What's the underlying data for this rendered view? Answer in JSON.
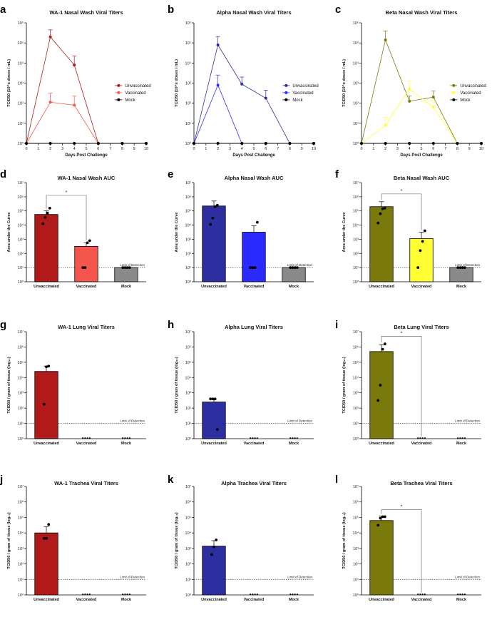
{
  "colors": {
    "wa1_unvax": "#b11a1a",
    "wa1_vax": "#f4564e",
    "alpha_unvax": "#2d2e9f",
    "alpha_vax": "#2b2bff",
    "beta_unvax": "#7a7a0c",
    "beta_vax": "#ffff33",
    "mock": "#8a8a8a",
    "mock_line": "#000000"
  },
  "chart_data": [
    {
      "panel": "a",
      "type": "line",
      "title": "WA-1 Nasal Wash Viral Titers",
      "xlabel": "Days Post Challenge",
      "ylabel": "TCID50 (10^x doses / mL)",
      "x_ticks": [
        "0",
        "1",
        "2",
        "3",
        "4",
        "5",
        "6",
        "7",
        "8",
        "9",
        "10"
      ],
      "y_ticks": [
        "10⁰",
        "10¹",
        "10²",
        "10³",
        "10⁴",
        "10⁵",
        "10⁶"
      ],
      "ylim_log10": [
        0,
        6
      ],
      "x": [
        0,
        2,
        4,
        6,
        8,
        10
      ],
      "series": [
        {
          "name": "Unvaccinated",
          "color_key": "wa1_unvax",
          "values_log10": [
            0,
            5.3,
            3.9,
            0,
            0,
            0
          ],
          "err_log10": [
            0,
            0.35,
            0.45,
            0,
            0,
            0
          ]
        },
        {
          "name": "Vaccinated",
          "color_key": "wa1_vax",
          "values_log10": [
            0,
            2.05,
            1.9,
            0,
            0,
            0
          ],
          "err_log10": [
            0,
            0.45,
            0.45,
            0,
            0,
            0
          ]
        },
        {
          "name": "Mock",
          "color_key": "mock_line",
          "values_log10": [
            0,
            0,
            0,
            0,
            0,
            0
          ],
          "err_log10": [
            0,
            0,
            0,
            0,
            0,
            0
          ]
        }
      ]
    },
    {
      "panel": "b",
      "type": "line",
      "title": "Alpha Nasal Wash Viral Titers",
      "xlabel": "Days Post Challenge",
      "ylabel": "TCID50 (10^x doses / mL)",
      "x_ticks": [
        "0",
        "1",
        "2",
        "3",
        "4",
        "5",
        "6",
        "7",
        "8",
        "9",
        "10"
      ],
      "y_ticks": [
        "10⁰",
        "10¹",
        "10²",
        "10³",
        "10⁴",
        "10⁵",
        "10⁶"
      ],
      "ylim_log10": [
        0,
        6
      ],
      "x": [
        0,
        2,
        4,
        6,
        8,
        10
      ],
      "series": [
        {
          "name": "Unvaccinated",
          "color_key": "alpha_unvax",
          "values_log10": [
            0,
            4.9,
            2.95,
            2.25,
            0,
            0
          ],
          "err_log10": [
            0,
            0.4,
            0.35,
            0.4,
            0,
            0
          ]
        },
        {
          "name": "Vaccinated",
          "color_key": "alpha_vax",
          "values_log10": [
            0,
            2.9,
            0,
            0,
            0,
            0
          ],
          "err_log10": [
            0,
            0.5,
            0,
            0,
            0,
            0
          ]
        },
        {
          "name": "Mock",
          "color_key": "mock_line",
          "values_log10": [
            0,
            0,
            0,
            0,
            0,
            0
          ],
          "err_log10": [
            0,
            0,
            0,
            0,
            0,
            0
          ]
        }
      ]
    },
    {
      "panel": "c",
      "type": "line",
      "title": "Beta Nasal Wash Viral Titers",
      "xlabel": "Days Post Challenge",
      "ylabel": "TCID50 (10^x doses / mL)",
      "x_ticks": [
        "0",
        "1",
        "2",
        "3",
        "4",
        "5",
        "6",
        "7",
        "8",
        "9",
        "10"
      ],
      "y_ticks": [
        "10⁰",
        "10¹",
        "10²",
        "10³",
        "10⁴",
        "10⁵",
        "10⁶"
      ],
      "ylim_log10": [
        0,
        6
      ],
      "x": [
        0,
        2,
        4,
        6,
        8,
        10
      ],
      "series": [
        {
          "name": "Unvaccinated",
          "color_key": "beta_unvax",
          "values_log10": [
            0,
            5.15,
            2.1,
            2.3,
            0,
            0
          ],
          "err_log10": [
            0,
            0.45,
            0.25,
            0.3,
            0,
            0
          ]
        },
        {
          "name": "Vaccinated",
          "color_key": "beta_vax",
          "values_log10": [
            0,
            0.9,
            2.7,
            1.8,
            0,
            0
          ],
          "err_log10": [
            0,
            0.4,
            0.4,
            0.3,
            0,
            0
          ]
        },
        {
          "name": "Mock",
          "color_key": "mock_line",
          "values_log10": [
            0,
            0,
            0,
            0,
            0,
            0
          ],
          "err_log10": [
            0,
            0,
            0,
            0,
            0,
            0
          ]
        }
      ]
    },
    {
      "panel": "d",
      "type": "bar",
      "title": "WA-1 Nasal Wash AUC",
      "ylabel": "Area under the Curve",
      "categories": [
        "Unvaccinated",
        "Vaccinated",
        "Mock"
      ],
      "color_keys": [
        "wa1_unvax",
        "wa1_vax",
        "mock"
      ],
      "values_log10": [
        4.75,
        2.5,
        1.0
      ],
      "err_log10": [
        0.25,
        0.25,
        0
      ],
      "points_log10": [
        [
          4.1,
          4.55,
          4.85,
          5.2
        ],
        [
          1.0,
          1.0,
          2.75,
          2.9
        ],
        [
          1.0,
          1.0,
          1.0,
          1.0
        ]
      ],
      "y_ticks": [
        "10⁰",
        "10¹",
        "10²",
        "10³",
        "10⁴",
        "10⁵",
        "10⁶",
        "10⁷"
      ],
      "ylim_log10": [
        0,
        7
      ],
      "lod_log10": 1.0,
      "lod_label": "Limit of Detection",
      "significance": {
        "from": 0,
        "to": 1,
        "label": "*",
        "level_log10": 6.1
      }
    },
    {
      "panel": "e",
      "type": "bar",
      "title": "Alpha Nasal Wash AUC",
      "ylabel": "Area under the Curve",
      "categories": [
        "Unvaccinated",
        "Vaccinated",
        "Mock"
      ],
      "color_keys": [
        "alpha_unvax",
        "alpha_vax",
        "mock"
      ],
      "values_log10": [
        5.35,
        3.5,
        1.0
      ],
      "err_log10": [
        0.35,
        0.45,
        0
      ],
      "points_log10": [
        [
          4.05,
          4.5,
          5.3,
          5.4
        ],
        [
          1.0,
          1.0,
          1.0,
          4.2
        ],
        [
          1.0,
          1.0,
          1.0,
          1.0
        ]
      ],
      "y_ticks": [
        "10⁰",
        "10¹",
        "10²",
        "10³",
        "10⁴",
        "10⁵",
        "10⁶",
        "10⁷"
      ],
      "ylim_log10": [
        0,
        7
      ],
      "lod_log10": 1.0,
      "lod_label": "Limit of Detection",
      "significance": null
    },
    {
      "panel": "f",
      "type": "bar",
      "title": "Beta Nasal Wash AUC",
      "ylabel": "Area under the Curve",
      "categories": [
        "Unvaccinated",
        "Vaccinated",
        "Mock"
      ],
      "color_keys": [
        "beta_unvax",
        "beta_vax",
        "mock"
      ],
      "values_log10": [
        5.3,
        3.05,
        1.0
      ],
      "err_log10": [
        0.35,
        0.45,
        0
      ],
      "points_log10": [
        [
          4.15,
          4.8,
          5.15,
          5.2
        ],
        [
          1.0,
          2.2,
          2.85,
          3.6
        ],
        [
          1.0,
          1.0,
          1.0,
          1.0
        ]
      ],
      "y_ticks": [
        "10⁰",
        "10¹",
        "10²",
        "10³",
        "10⁴",
        "10⁵",
        "10⁶",
        "10⁷"
      ],
      "ylim_log10": [
        0,
        7
      ],
      "lod_log10": 1.0,
      "lod_label": "Limit of Detection",
      "significance": {
        "from": 0,
        "to": 1,
        "label": "*",
        "level_log10": 6.2
      }
    },
    {
      "panel": "g",
      "type": "bar",
      "title": "WA-1 Lung Viral Titers",
      "ylabel": "TCID50 / gram of tissue (log₁₀)",
      "categories": [
        "Unvaccinated",
        "Vaccinated",
        "Mock"
      ],
      "color_keys": [
        "wa1_unvax",
        "wa1_vax",
        "mock"
      ],
      "values_log10": [
        4.4,
        0,
        0
      ],
      "err_log10": [
        0.35,
        0,
        0
      ],
      "points_log10": [
        [
          2.25,
          4.7,
          4.75
        ],
        [
          0,
          0,
          0,
          0
        ],
        [
          0,
          0,
          0,
          0
        ]
      ],
      "y_ticks": [
        "10⁰",
        "10¹",
        "10²",
        "10³",
        "10⁴",
        "10⁵",
        "10⁶",
        "10⁷"
      ],
      "ylim_log10": [
        0,
        7
      ],
      "lod_log10": 1.0,
      "lod_label": "Limit of Detection",
      "significance": null
    },
    {
      "panel": "h",
      "type": "bar",
      "title": "Alpha Lung Viral Titers",
      "ylabel": "TCID50 / gram of tissue (log₁₀)",
      "categories": [
        "Unvaccinated",
        "Vaccinated",
        "Mock"
      ],
      "color_keys": [
        "alpha_unvax",
        "alpha_vax",
        "mock"
      ],
      "values_log10": [
        2.4,
        0,
        0
      ],
      "err_log10": [
        0.2,
        0,
        0
      ],
      "points_log10": [
        [
          2.6,
          2.6,
          2.6,
          0.6
        ],
        [
          0,
          0,
          0,
          0
        ],
        [
          0,
          0,
          0,
          0
        ]
      ],
      "y_ticks": [
        "10⁰",
        "10¹",
        "10²",
        "10³",
        "10⁴",
        "10⁵",
        "10⁶",
        "10⁷"
      ],
      "ylim_log10": [
        0,
        7
      ],
      "lod_log10": 1.0,
      "lod_label": "Limit of Detection",
      "significance": null
    },
    {
      "panel": "i",
      "type": "bar",
      "title": "Beta Lung Viral Titers",
      "ylabel": "TCID50 / gram of tissue (log₁₀)",
      "categories": [
        "Unvaccinated",
        "Vaccinated",
        "Mock"
      ],
      "color_keys": [
        "beta_unvax",
        "beta_vax",
        "mock"
      ],
      "values_log10": [
        5.7,
        0,
        0
      ],
      "err_log10": [
        0.45,
        0,
        0
      ],
      "points_log10": [
        [
          2.5,
          3.5,
          5.85,
          6.2
        ],
        [
          0,
          0,
          0,
          0
        ],
        [
          0,
          0,
          0,
          0
        ]
      ],
      "y_ticks": [
        "10⁰",
        "10¹",
        "10²",
        "10³",
        "10⁴",
        "10⁵",
        "10⁶",
        "10⁷"
      ],
      "ylim_log10": [
        0,
        7
      ],
      "lod_log10": 1.0,
      "lod_label": "Limit of Detection",
      "significance": {
        "from": 0,
        "to": 1,
        "label": "*",
        "level_log10": 6.7
      }
    },
    {
      "panel": "j",
      "type": "bar",
      "title": "WA-1 Trachea Viral Titers",
      "ylabel": "TCID50 / gram of tissue (log₁₀)",
      "categories": [
        "Unvaccinated",
        "Vaccinated",
        "Mock"
      ],
      "color_keys": [
        "wa1_unvax",
        "wa1_vax",
        "mock"
      ],
      "values_log10": [
        4.0,
        0,
        0
      ],
      "err_log10": [
        0.4,
        0,
        0
      ],
      "points_log10": [
        [
          3.65,
          3.65,
          4.55
        ],
        [
          0,
          0,
          0,
          0
        ],
        [
          0,
          0,
          0,
          0
        ]
      ],
      "y_ticks": [
        "10⁰",
        "10¹",
        "10²",
        "10³",
        "10⁴",
        "10⁵",
        "10⁶",
        "10⁷"
      ],
      "ylim_log10": [
        0,
        7
      ],
      "lod_log10": 1.0,
      "lod_label": "Limit of Detection",
      "significance": null
    },
    {
      "panel": "k",
      "type": "bar",
      "title": "Alpha Trachea Viral Titers",
      "ylabel": "TCID50 / gram of tissue (log₁₀)",
      "categories": [
        "Unvaccinated",
        "Vaccinated",
        "Mock"
      ],
      "color_keys": [
        "alpha_unvax",
        "alpha_vax",
        "mock"
      ],
      "values_log10": [
        3.15,
        0,
        0
      ],
      "err_log10": [
        0.35,
        0,
        0
      ],
      "points_log10": [
        [
          2.6,
          3.1,
          3.55
        ],
        [
          0,
          0,
          0,
          0
        ],
        [
          0,
          0,
          0,
          0
        ]
      ],
      "y_ticks": [
        "10⁰",
        "10¹",
        "10²",
        "10³",
        "10⁴",
        "10⁵",
        "10⁶",
        "10⁷"
      ],
      "ylim_log10": [
        0,
        7
      ],
      "lod_log10": 1.0,
      "lod_label": "Limit of Detection",
      "significance": null
    },
    {
      "panel": "l",
      "type": "bar",
      "title": "Beta Trachea Viral Titers",
      "ylabel": "TCID50 / gram of tissue (log₁₀)",
      "categories": [
        "Unvaccinated",
        "Vaccinated",
        "Mock"
      ],
      "color_keys": [
        "beta_unvax",
        "beta_vax",
        "mock"
      ],
      "values_log10": [
        4.8,
        0,
        0
      ],
      "err_log10": [
        0.3,
        0,
        0
      ],
      "points_log10": [
        [
          4.5,
          4.95,
          5.05,
          5.05
        ],
        [
          0,
          0,
          0,
          0
        ],
        [
          0,
          0,
          0,
          0
        ]
      ],
      "y_ticks": [
        "10⁰",
        "10¹",
        "10²",
        "10³",
        "10⁴",
        "10⁵",
        "10⁶",
        "10⁷"
      ],
      "ylim_log10": [
        0,
        7
      ],
      "lod_log10": 1.0,
      "lod_label": "Limit of Detection",
      "significance": {
        "from": 0,
        "to": 1,
        "label": "*",
        "level_log10": 5.5
      }
    }
  ]
}
